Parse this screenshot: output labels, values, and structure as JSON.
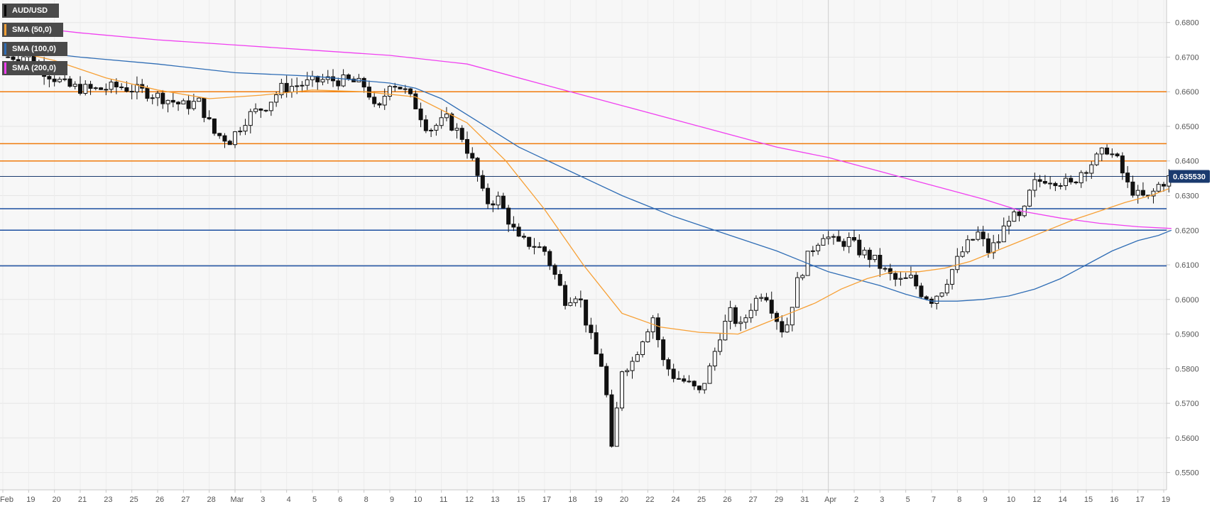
{
  "chart_data": {
    "type": "candlestick",
    "symbol": "AUD/USD",
    "legend": [
      {
        "label": "AUD/USD",
        "color": "#000000"
      },
      {
        "label": "SMA (50,0)",
        "color": "#f7a035"
      },
      {
        "label": "SMA (100,0)",
        "color": "#2f6db5"
      },
      {
        "label": "SMA (200,0)",
        "color": "#f040f0"
      }
    ],
    "ylim": [
      0.545,
      0.6865
    ],
    "yticks": [
      "0.5500",
      "0.5600",
      "0.5700",
      "0.5800",
      "0.5900",
      "0.6000",
      "0.6100",
      "0.6200",
      "0.6300",
      "0.6400",
      "0.6500",
      "0.6600",
      "0.6700",
      "0.6800"
    ],
    "xticks": [
      "Feb",
      "19",
      "20",
      "21",
      "23",
      "25",
      "26",
      "27",
      "28",
      "Mar",
      "3",
      "4",
      "5",
      "6",
      "8",
      "9",
      "10",
      "11",
      "12",
      "13",
      "15",
      "17",
      "18",
      "19",
      "20",
      "22",
      "24",
      "25",
      "26",
      "27",
      "29",
      "31",
      "Apr",
      "2",
      "3",
      "5",
      "7",
      "8",
      "9",
      "10",
      "12",
      "14",
      "15",
      "16",
      "17",
      "19"
    ],
    "x_range": [
      0,
      45.8
    ],
    "current_price": {
      "label": "0.635530",
      "value": 0.63553,
      "color": "#1a3a6e"
    },
    "horizontal_levels": [
      {
        "value": 0.66,
        "color": "#f07b0c"
      },
      {
        "value": 0.645,
        "color": "#f07b0c"
      },
      {
        "value": 0.64,
        "color": "#f07b0c"
      },
      {
        "value": 0.6262,
        "color": "#1b4ea0"
      },
      {
        "value": 0.62,
        "color": "#1b4ea0"
      },
      {
        "value": 0.6097,
        "color": "#1b4ea0"
      }
    ],
    "vertical_lines": [
      9,
      32
    ],
    "price_path": [
      [
        0,
        0.67
      ],
      [
        1,
        0.6705
      ],
      [
        1.6,
        0.666
      ],
      [
        2.5,
        0.6615
      ],
      [
        3.5,
        0.6605
      ],
      [
        4.5,
        0.6615
      ],
      [
        5.5,
        0.66
      ],
      [
        6.3,
        0.658
      ],
      [
        7,
        0.656
      ],
      [
        7.6,
        0.657
      ],
      [
        8.2,
        0.648
      ],
      [
        8.8,
        0.646
      ],
      [
        9.5,
        0.653
      ],
      [
        10.2,
        0.656
      ],
      [
        10.8,
        0.661
      ],
      [
        11.5,
        0.662
      ],
      [
        12.5,
        0.6635
      ],
      [
        13.5,
        0.663
      ],
      [
        14.1,
        0.6615
      ],
      [
        14.5,
        0.653
      ],
      [
        15,
        0.663
      ],
      [
        15.5,
        0.661
      ],
      [
        16,
        0.656
      ],
      [
        16.5,
        0.649
      ],
      [
        17.2,
        0.652
      ],
      [
        17.8,
        0.647
      ],
      [
        18.3,
        0.638
      ],
      [
        18.7,
        0.628
      ],
      [
        19.2,
        0.629
      ],
      [
        19.6,
        0.623
      ],
      [
        20,
        0.617
      ],
      [
        20.5,
        0.616
      ],
      [
        21,
        0.614
      ],
      [
        21.4,
        0.607
      ],
      [
        21.8,
        0.6
      ],
      [
        22.3,
        0.602
      ],
      [
        22.7,
        0.591
      ],
      [
        23,
        0.584
      ],
      [
        23.3,
        0.58
      ],
      [
        23.6,
        0.556
      ],
      [
        24,
        0.58
      ],
      [
        24.4,
        0.582
      ],
      [
        24.8,
        0.589
      ],
      [
        25.2,
        0.595
      ],
      [
        25.6,
        0.582
      ],
      [
        26,
        0.578
      ],
      [
        26.5,
        0.576
      ],
      [
        27,
        0.573
      ],
      [
        27.4,
        0.58
      ],
      [
        27.8,
        0.59
      ],
      [
        28.2,
        0.596
      ],
      [
        28.6,
        0.592
      ],
      [
        29,
        0.598
      ],
      [
        29.5,
        0.603
      ],
      [
        29.9,
        0.596
      ],
      [
        30.3,
        0.59
      ],
      [
        30.8,
        0.605
      ],
      [
        31.3,
        0.614
      ],
      [
        31.8,
        0.619
      ],
      [
        32.3,
        0.616
      ],
      [
        32.8,
        0.617
      ],
      [
        33.2,
        0.614
      ],
      [
        33.7,
        0.612
      ],
      [
        34.2,
        0.608
      ],
      [
        34.7,
        0.605
      ],
      [
        35.2,
        0.606
      ],
      [
        35.6,
        0.602
      ],
      [
        36,
        0.6
      ],
      [
        36.4,
        0.603
      ],
      [
        36.9,
        0.61
      ],
      [
        37.3,
        0.615
      ],
      [
        37.8,
        0.619
      ],
      [
        38.2,
        0.614
      ],
      [
        38.6,
        0.617
      ],
      [
        39,
        0.624
      ],
      [
        39.5,
        0.623
      ],
      [
        39.9,
        0.633
      ],
      [
        40.4,
        0.635
      ],
      [
        40.9,
        0.6345
      ],
      [
        41.4,
        0.633
      ],
      [
        41.8,
        0.637
      ],
      [
        42.3,
        0.64
      ],
      [
        42.8,
        0.6435
      ],
      [
        43.2,
        0.64
      ],
      [
        43.6,
        0.633
      ],
      [
        44,
        0.63
      ],
      [
        44.4,
        0.629
      ],
      [
        44.8,
        0.633
      ],
      [
        45.3,
        0.6355
      ]
    ],
    "sma_50": [
      [
        0,
        0.6725
      ],
      [
        2,
        0.669
      ],
      [
        4,
        0.664
      ],
      [
        6,
        0.6605
      ],
      [
        8,
        0.658
      ],
      [
        10,
        0.659
      ],
      [
        12,
        0.6605
      ],
      [
        14,
        0.66
      ],
      [
        16,
        0.6585
      ],
      [
        18,
        0.651
      ],
      [
        19.5,
        0.64
      ],
      [
        21,
        0.626
      ],
      [
        22.5,
        0.61
      ],
      [
        24,
        0.596
      ],
      [
        25.5,
        0.592
      ],
      [
        27,
        0.5905
      ],
      [
        28.5,
        0.59
      ],
      [
        29.5,
        0.593
      ],
      [
        30.5,
        0.596
      ],
      [
        31.5,
        0.599
      ],
      [
        32.5,
        0.603
      ],
      [
        33.5,
        0.606
      ],
      [
        34.5,
        0.608
      ],
      [
        35.5,
        0.608
      ],
      [
        36.5,
        0.609
      ],
      [
        37.5,
        0.611
      ],
      [
        38.5,
        0.614
      ],
      [
        39.5,
        0.617
      ],
      [
        40.5,
        0.62
      ],
      [
        41.5,
        0.623
      ],
      [
        42.5,
        0.6255
      ],
      [
        43.5,
        0.628
      ],
      [
        44.5,
        0.63
      ],
      [
        45.2,
        0.632
      ]
    ],
    "sma_100": [
      [
        0,
        0.6725
      ],
      [
        3,
        0.67
      ],
      [
        6,
        0.668
      ],
      [
        9,
        0.6655
      ],
      [
        12,
        0.6645
      ],
      [
        15,
        0.6625
      ],
      [
        16,
        0.661
      ],
      [
        17,
        0.658
      ],
      [
        18.5,
        0.651
      ],
      [
        20,
        0.644
      ],
      [
        22,
        0.637
      ],
      [
        24,
        0.63
      ],
      [
        26,
        0.624
      ],
      [
        28,
        0.619
      ],
      [
        30,
        0.614
      ],
      [
        31,
        0.611
      ],
      [
        32,
        0.608
      ],
      [
        33,
        0.606
      ],
      [
        34,
        0.604
      ],
      [
        35,
        0.6015
      ],
      [
        36,
        0.5995
      ],
      [
        37,
        0.5995
      ],
      [
        38,
        0.6
      ],
      [
        39,
        0.601
      ],
      [
        40,
        0.603
      ],
      [
        41,
        0.606
      ],
      [
        42,
        0.61
      ],
      [
        43,
        0.614
      ],
      [
        44,
        0.617
      ],
      [
        44.8,
        0.6185
      ],
      [
        45.3,
        0.62
      ]
    ],
    "sma_200": [
      [
        0,
        0.6795
      ],
      [
        3,
        0.677
      ],
      [
        6,
        0.675
      ],
      [
        9,
        0.6735
      ],
      [
        12,
        0.672
      ],
      [
        15,
        0.6705
      ],
      [
        18,
        0.668
      ],
      [
        21,
        0.662
      ],
      [
        24,
        0.656
      ],
      [
        27,
        0.65
      ],
      [
        30,
        0.644
      ],
      [
        32,
        0.641
      ],
      [
        34,
        0.637
      ],
      [
        36,
        0.633
      ],
      [
        38,
        0.629
      ],
      [
        39.5,
        0.6255
      ],
      [
        41,
        0.6235
      ],
      [
        42.5,
        0.622
      ],
      [
        44,
        0.621
      ],
      [
        45.3,
        0.6205
      ]
    ]
  }
}
